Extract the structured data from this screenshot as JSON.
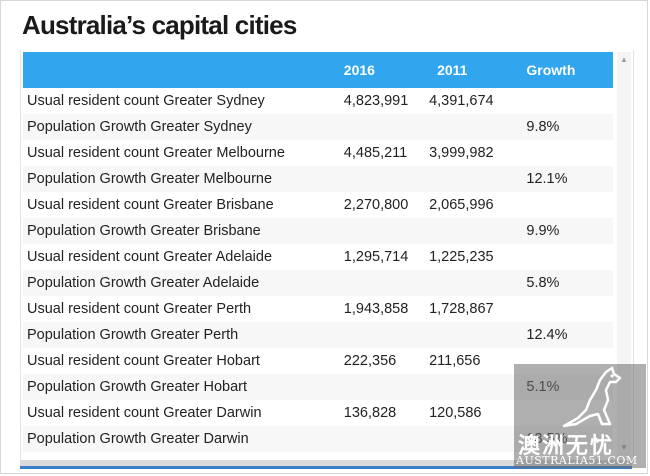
{
  "page_title": "Australia’s capital cities",
  "table": {
    "headers": [
      "",
      "2016",
      "2011",
      "Growth"
    ],
    "rows": [
      {
        "label": "Usual resident count Greater Sydney",
        "y2016": "4,823,991",
        "y2011": "4,391,674",
        "growth": ""
      },
      {
        "label": "Population Growth Greater Sydney",
        "y2016": "",
        "y2011": "",
        "growth": "9.8%"
      },
      {
        "label": "Usual resident count Greater Melbourne",
        "y2016": "4,485,211",
        "y2011": "3,999,982",
        "growth": ""
      },
      {
        "label": "Population Growth Greater Melbourne",
        "y2016": "",
        "y2011": "",
        "growth": "12.1%"
      },
      {
        "label": "Usual resident count Greater Brisbane",
        "y2016": "2,270,800",
        "y2011": "2,065,996",
        "growth": ""
      },
      {
        "label": "Population Growth Greater Brisbane",
        "y2016": "",
        "y2011": "",
        "growth": "9.9%"
      },
      {
        "label": "Usual resident count Greater Adelaide",
        "y2016": "1,295,714",
        "y2011": "1,225,235",
        "growth": ""
      },
      {
        "label": "Population Growth Greater Adelaide",
        "y2016": "",
        "y2011": "",
        "growth": "5.8%"
      },
      {
        "label": "Usual resident count Greater Perth",
        "y2016": "1,943,858",
        "y2011": "1,728,867",
        "growth": ""
      },
      {
        "label": "Population Growth Greater Perth",
        "y2016": "",
        "y2011": "",
        "growth": "12.4%"
      },
      {
        "label": "Usual resident count Greater Hobart",
        "y2016": "222,356",
        "y2011": "211,656",
        "growth": ""
      },
      {
        "label": "Population Growth Greater Hobart",
        "y2016": "",
        "y2011": "",
        "growth": "5.1%"
      },
      {
        "label": "Usual resident count Greater Darwin",
        "y2016": "136,828",
        "y2011": "120,586",
        "growth": ""
      },
      {
        "label": "Population Growth Greater Darwin",
        "y2016": "",
        "y2011": "",
        "growth": "13.5%"
      }
    ]
  },
  "scrollbar": {
    "up_icon": "scroll-up-arrow",
    "down_icon": "scroll-down-arrow"
  },
  "watermark": {
    "chinese_text": "澳洲无忧",
    "url": "AUSTRALIA51.COM",
    "icon": "kangaroo-logo"
  },
  "colors": {
    "header_bg": "#31a5ee",
    "header_text": "#ffffff",
    "bottom_accent": "#3a7ec7"
  }
}
